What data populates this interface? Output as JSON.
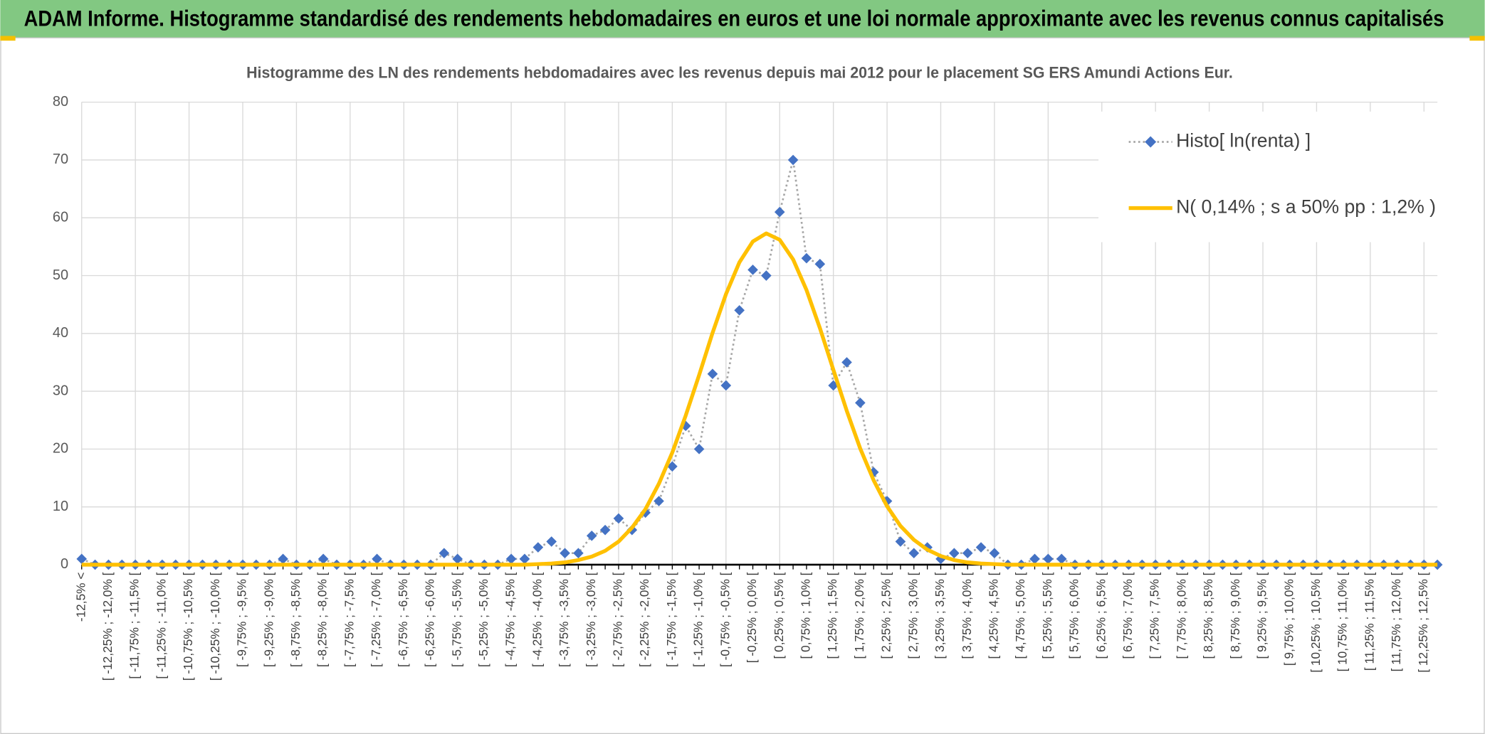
{
  "header": {
    "title": "ADAM Informe. Histogramme standardisé des rendements hebdomadaires en euros et une loi normale approximante avec les revenus connus capitalisés"
  },
  "chart_data": {
    "type": "line",
    "title": "Histogramme des LN des rendements hebdomadaires avec les revenus depuis mai 2012 pour le placement SG ERS Amundi Actions Eur.",
    "categories": [
      "-12,5% <",
      null,
      "[ -12,25% ; -12,0% [",
      null,
      "[ -11,75% ; -11,5% [",
      null,
      "[ -11,25% ; -11,0% [",
      null,
      "[ -10,75% ; -10,5% [",
      null,
      "[ -10,25% ; -10,0% [",
      null,
      "[ -9,75% ; -9,5% [",
      null,
      "[ -9,25% ; -9,0% [",
      null,
      "[ -8,75% ; -8,5% [",
      null,
      "[ -8,25% ; -8,0% [",
      null,
      "[ -7,75% ; -7,5% [",
      null,
      "[ -7,25% ; -7,0% [",
      null,
      "[ -6,75% ; -6,5% [",
      null,
      "[ -6,25% ; -6,0% [",
      null,
      "[ -5,75% ; -5,5% [",
      null,
      "[ -5,25% ; -5,0% [",
      null,
      "[ -4,75% ; -4,5% [",
      null,
      "[ -4,25% ; -4,0% [",
      null,
      "[ -3,75% ; -3,5% [",
      null,
      "[ -3,25% ; -3,0% [",
      null,
      "[ -2,75% ; -2,5% [",
      null,
      "[ -2,25% ; -2,0% [",
      null,
      "[ -1,75% ; -1,5% [",
      null,
      "[ -1,25% ; -1,0% [",
      null,
      "[ -0,75% ; -0,5% [",
      null,
      "[ -0,25% ; 0,0% [",
      null,
      "[ 0,25% ; 0,5% [",
      null,
      "[ 0,75% ; 1,0% [",
      null,
      "[ 1,25% ; 1,5% [",
      null,
      "[ 1,75% ; 2,0% [",
      null,
      "[ 2,25% ; 2,5% [",
      null,
      "[ 2,75% ; 3,0% [",
      null,
      "[ 3,25% ; 3,5% [",
      null,
      "[ 3,75% ; 4,0% [",
      null,
      "[ 4,25% ; 4,5% [",
      null,
      "[ 4,75% ; 5,0% [",
      null,
      "[ 5,25% ; 5,5% [",
      null,
      "[ 5,75% ; 6,0% [",
      null,
      "[ 6,25% ; 6,5% [",
      null,
      "[ 6,75% ; 7,0% [",
      null,
      "[ 7,25% ; 7,5% [",
      null,
      "[ 7,75% ; 8,0% [",
      null,
      "[ 8,25% ; 8,5% [",
      null,
      "[ 8,75% ; 9,0% [",
      null,
      "[ 9,25% ; 9,5% [",
      null,
      "[ 9,75% ; 10,0% [",
      null,
      "[ 10,25% ; 10,5% [",
      null,
      "[ 10,75% ; 11,0% [",
      null,
      "[ 11,25% ; 11,5% [",
      null,
      "[ 11,75% ; 12,0% [",
      null,
      "[ 12,25% ; 12,5% [",
      null
    ],
    "series": [
      {
        "name": "Histo[ ln(renta) ]",
        "color": "#4472c4",
        "line_color": "#a6a6a6",
        "marker": "diamond",
        "dashed": true,
        "values": [
          1,
          0,
          0,
          0,
          0,
          0,
          0,
          0,
          0,
          0,
          0,
          0,
          0,
          0,
          0,
          1,
          0,
          0,
          1,
          0,
          0,
          0,
          1,
          0,
          0,
          0,
          0,
          2,
          1,
          0,
          0,
          0,
          1,
          1,
          3,
          4,
          2,
          2,
          5,
          6,
          8,
          6,
          9,
          11,
          17,
          24,
          20,
          33,
          31,
          44,
          51,
          50,
          61,
          70,
          53,
          52,
          31,
          35,
          28,
          16,
          11,
          4,
          2,
          3,
          1,
          2,
          2,
          3,
          2,
          0,
          0,
          1,
          1,
          1,
          0,
          0,
          0,
          0,
          0,
          0,
          0,
          0,
          0,
          0,
          0,
          0,
          0,
          0,
          0,
          0,
          0,
          0,
          0,
          0,
          0,
          0,
          0,
          0,
          0,
          0,
          0,
          0
        ]
      },
      {
        "name": "N( 0,14% ; s a 50% pp : 1,2% )",
        "color": "#ffc000",
        "marker": "none",
        "dashed": false,
        "values": [
          0,
          0,
          0,
          0,
          0,
          0,
          0,
          0,
          0,
          0,
          0,
          0,
          0,
          0,
          0,
          0,
          0,
          0,
          0,
          0,
          0,
          0,
          0,
          0,
          0,
          0,
          0,
          0,
          0,
          0,
          0,
          0,
          0,
          0,
          0.1,
          0.2,
          0.4,
          0.8,
          1.4,
          2.4,
          4.0,
          6.4,
          9.6,
          14.0,
          19.4,
          25.8,
          32.8,
          40.1,
          46.8,
          52.3,
          55.9,
          57.3,
          56.2,
          52.8,
          47.5,
          40.9,
          33.7,
          26.6,
          20.1,
          14.6,
          10.1,
          6.7,
          4.3,
          2.6,
          1.5,
          0.8,
          0.4,
          0.2,
          0.1,
          0,
          0,
          0,
          0,
          0,
          0,
          0,
          0,
          0,
          0,
          0,
          0,
          0,
          0,
          0,
          0,
          0,
          0,
          0,
          0,
          0,
          0,
          0,
          0,
          0,
          0,
          0,
          0,
          0,
          0,
          0,
          0,
          0
        ]
      }
    ],
    "ylim": [
      0,
      80
    ],
    "yticks": [
      0,
      10,
      20,
      30,
      40,
      50,
      60,
      70,
      80
    ],
    "grid": true,
    "legend": "top-right"
  }
}
